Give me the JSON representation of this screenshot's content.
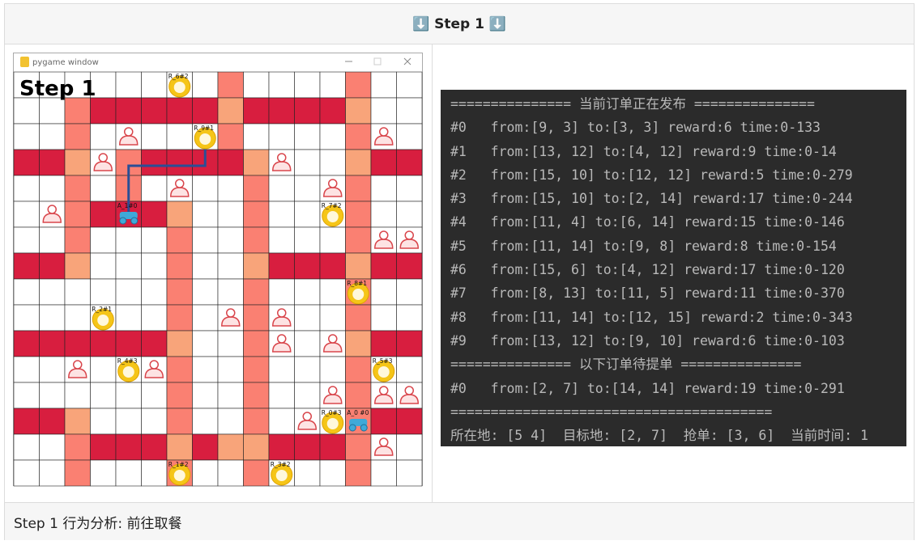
{
  "header": "⬇️ Step 1 ⬇️",
  "window": {
    "title": "pygame window",
    "overlay": "Step 1",
    "labels": [
      "R_6#2",
      "R_9#1",
      "A_1#0",
      "R_7#2",
      "R_8#1",
      "R_2#1",
      "R_4#3",
      "R_5#3",
      "R_0#3",
      "A_0 #0",
      "R_1#2",
      "R_3#2"
    ]
  },
  "terminal": {
    "lines": [
      "=============== 当前订单正在发布 ===============",
      "#0   from:[9, 3] to:[3, 3] reward:6 time:0-133",
      "#1   from:[13, 12] to:[4, 12] reward:9 time:0-14",
      "#2   from:[15, 10] to:[12, 12] reward:5 time:0-279",
      "#3   from:[15, 10] to:[2, 14] reward:17 time:0-244",
      "#4   from:[11, 4] to:[6, 14] reward:15 time:0-146",
      "#5   from:[11, 14] to:[9, 8] reward:8 time:0-154",
      "#6   from:[15, 6] to:[4, 12] reward:17 time:0-120",
      "#7   from:[8, 13] to:[11, 5] reward:11 time:0-370",
      "#8   from:[11, 14] to:[12, 15] reward:2 time:0-343",
      "#9   from:[13, 12] to:[9, 10] reward:6 time:0-103",
      "=============== 以下订单待提单 ===============",
      "#0   from:[2, 7] to:[14, 14] reward:19 time:0-291",
      "========================================",
      "所在地: [5 4]  目标地: [2, 7]  抢单: [3, 6]  当前时间: 1"
    ]
  },
  "footer": "Step 1 行为分析:  前往取餐"
}
